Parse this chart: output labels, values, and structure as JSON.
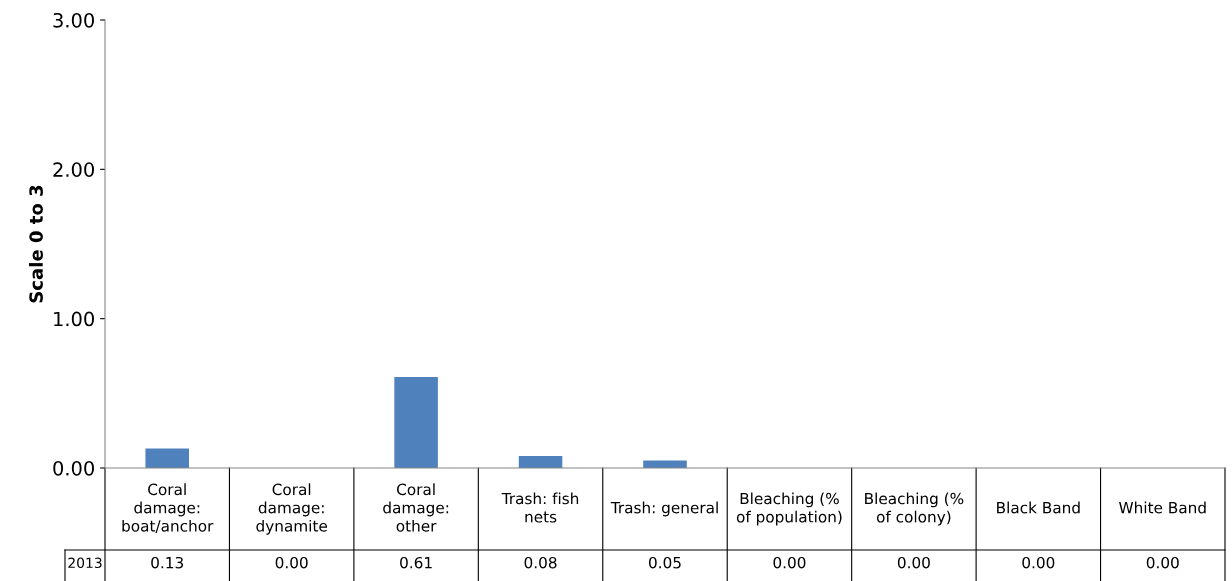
{
  "chart_data": {
    "type": "bar",
    "ylabel": "Scale 0 to 3",
    "categories": [
      "Coral damage: boat/anchor",
      "Coral damage: dynamite",
      "Coral damage: other",
      "Trash: fish nets",
      "Trash: general",
      "Bleaching (% of population)",
      "Bleaching (% of colony)",
      "Black Band",
      "White Band"
    ],
    "series": [
      {
        "name": "2013",
        "color": "#4f81bd",
        "values": [
          0.13,
          0.0,
          0.61,
          0.08,
          0.05,
          0.0,
          0.0,
          0.0,
          0.0
        ],
        "value_labels": [
          "0.13",
          "0.00",
          "0.61",
          "0.08",
          "0.05",
          "0.00",
          "0.00",
          "0.00",
          "0.00"
        ]
      }
    ],
    "ylim": [
      0,
      3
    ],
    "yticks": [
      {
        "value": 0,
        "label": "0.00"
      },
      {
        "value": 1,
        "label": "1.00"
      },
      {
        "value": 2,
        "label": "2.00"
      },
      {
        "value": 3,
        "label": "3.00"
      }
    ],
    "grid": false
  }
}
